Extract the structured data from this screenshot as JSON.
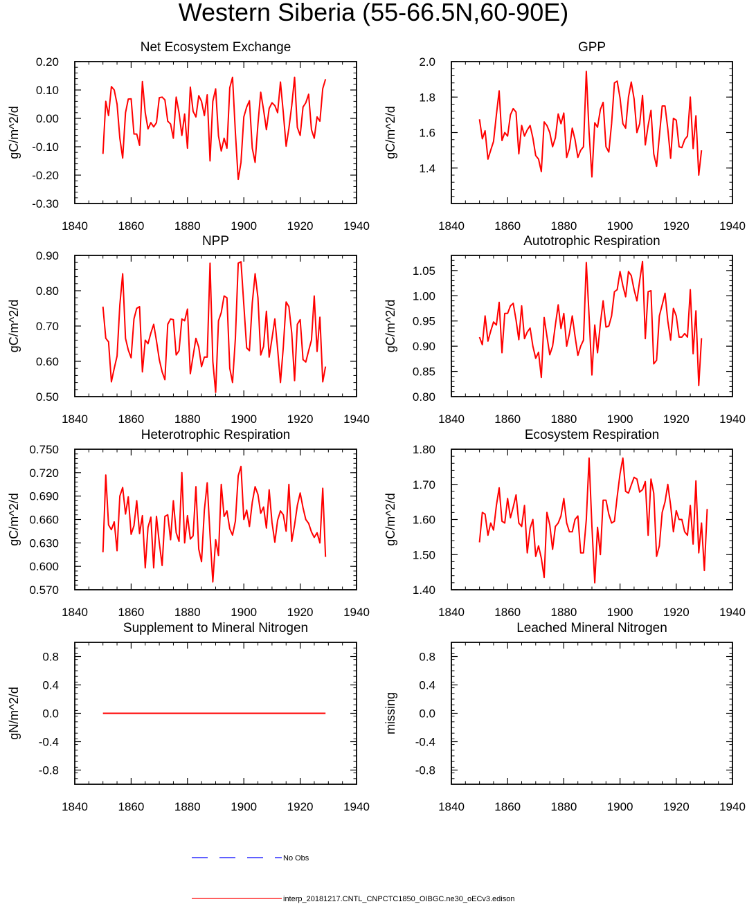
{
  "figure": {
    "title": "Western Siberia (55-66.5N,60-90E)",
    "legend": [
      {
        "label": "No Obs",
        "color": "#0000ff",
        "style": "dashed"
      },
      {
        "label": "interp_20181217.CNTL_CNPCTC1850_OIBGC.ne30_oECv3.edison",
        "color": "#ff0000",
        "style": "solid"
      }
    ]
  },
  "chart_data": [
    {
      "type": "line",
      "title": "Net Ecosystem Exchange",
      "ylabel": "gC/m^2/d",
      "xlim": [
        1840,
        1940
      ],
      "xticks": [
        "1840",
        "1860",
        "1880",
        "1900",
        "1920",
        "1940"
      ],
      "ylim": [
        -0.3,
        0.2
      ],
      "yticks": [
        "-0.30",
        "-0.20",
        "-0.10",
        "0.00",
        "0.10",
        "0.20"
      ],
      "series": [
        {
          "name": "model",
          "color": "#ff0000",
          "x_start": 1850,
          "values": [
            -0.125,
            0.06,
            0.01,
            0.112,
            0.1,
            0.05,
            -0.07,
            -0.14,
            0.02,
            0.068,
            0.069,
            -0.055,
            -0.055,
            -0.095,
            0.13,
            0.02,
            -0.037,
            -0.015,
            -0.03,
            -0.015,
            0.073,
            0.075,
            0.065,
            -0.01,
            -0.02,
            -0.07,
            0.075,
            0.02,
            -0.06,
            0.015,
            -0.105,
            0.11,
            0.025,
            0.005,
            0.08,
            0.06,
            0.01,
            0.083,
            -0.15,
            0.06,
            0.104,
            -0.062,
            -0.115,
            -0.07,
            -0.105,
            0.108,
            0.145,
            -0.05,
            -0.215,
            -0.155,
            0.005,
            0.04,
            0.062,
            -0.105,
            -0.155,
            -0.02,
            0.092,
            0.03,
            -0.04,
            0.035,
            0.055,
            0.045,
            0.02,
            0.128,
            0.02,
            -0.098,
            -0.035,
            0.045,
            0.145,
            -0.032,
            -0.06,
            0.04,
            0.055,
            0.085,
            -0.04,
            -0.07,
            0.005,
            -0.01,
            0.105,
            0.138
          ]
        }
      ]
    },
    {
      "type": "line",
      "title": "GPP",
      "ylabel": "gC/m^2/d",
      "xlim": [
        1840,
        1940
      ],
      "xticks": [
        "1840",
        "1860",
        "1880",
        "1900",
        "1920",
        "1940"
      ],
      "ylim": [
        1.2,
        2.0
      ],
      "yticks": [
        "1.4",
        "1.6",
        "1.8",
        "2.0"
      ],
      "series": [
        {
          "name": "model",
          "color": "#ff0000",
          "x_start": 1850,
          "values": [
            1.675,
            1.565,
            1.61,
            1.45,
            1.5,
            1.55,
            1.7,
            1.835,
            1.555,
            1.6,
            1.58,
            1.7,
            1.735,
            1.715,
            1.48,
            1.64,
            1.58,
            1.615,
            1.64,
            1.57,
            1.47,
            1.45,
            1.38,
            1.66,
            1.64,
            1.6,
            1.52,
            1.57,
            1.705,
            1.65,
            1.71,
            1.46,
            1.51,
            1.625,
            1.56,
            1.46,
            1.5,
            1.52,
            1.945,
            1.6,
            1.35,
            1.655,
            1.63,
            1.73,
            1.77,
            1.52,
            1.49,
            1.65,
            1.88,
            1.89,
            1.795,
            1.65,
            1.625,
            1.8,
            1.885,
            1.79,
            1.6,
            1.65,
            1.81,
            1.53,
            1.64,
            1.725,
            1.48,
            1.41,
            1.58,
            1.75,
            1.75,
            1.62,
            1.455,
            1.68,
            1.67,
            1.52,
            1.515,
            1.56,
            1.58,
            1.8,
            1.51,
            1.695,
            1.36,
            1.5
          ]
        }
      ]
    },
    {
      "type": "line",
      "title": "NPP",
      "ylabel": "gC/m^2/d",
      "xlim": [
        1840,
        1940
      ],
      "xticks": [
        "1840",
        "1860",
        "1880",
        "1900",
        "1920",
        "1940"
      ],
      "ylim": [
        0.5,
        0.9
      ],
      "yticks": [
        "0.50",
        "0.60",
        "0.70",
        "0.80",
        "0.90"
      ],
      "series": [
        {
          "name": "model",
          "color": "#ff0000",
          "x_start": 1850,
          "values": [
            0.755,
            0.665,
            0.655,
            0.542,
            0.58,
            0.615,
            0.76,
            0.848,
            0.665,
            0.632,
            0.61,
            0.72,
            0.75,
            0.755,
            0.57,
            0.66,
            0.65,
            0.68,
            0.705,
            0.658,
            0.605,
            0.57,
            0.548,
            0.705,
            0.72,
            0.718,
            0.618,
            0.63,
            0.72,
            0.715,
            0.748,
            0.565,
            0.615,
            0.665,
            0.64,
            0.585,
            0.612,
            0.612,
            0.878,
            0.6,
            0.512,
            0.715,
            0.738,
            0.785,
            0.78,
            0.58,
            0.54,
            0.665,
            0.878,
            0.882,
            0.76,
            0.638,
            0.63,
            0.765,
            0.848,
            0.78,
            0.618,
            0.642,
            0.742,
            0.612,
            0.665,
            0.72,
            0.635,
            0.54,
            0.64,
            0.768,
            0.755,
            0.68,
            0.545,
            0.705,
            0.718,
            0.605,
            0.598,
            0.63,
            0.66,
            0.785,
            0.628,
            0.725,
            0.542,
            0.585
          ]
        }
      ]
    },
    {
      "type": "line",
      "title": "Autotrophic Respiration",
      "ylabel": "gC/m^2/d",
      "xlim": [
        1840,
        1940
      ],
      "xticks": [
        "1840",
        "1860",
        "1880",
        "1900",
        "1920",
        "1940"
      ],
      "ylim": [
        0.8,
        1.08
      ],
      "yticks": [
        "0.80",
        "0.85",
        "0.90",
        "0.95",
        "1.00",
        "1.05"
      ],
      "series": [
        {
          "name": "model",
          "color": "#ff0000",
          "x_start": 1850,
          "values": [
            0.918,
            0.903,
            0.96,
            0.91,
            0.93,
            0.948,
            0.942,
            0.987,
            0.887,
            0.965,
            0.965,
            0.98,
            0.985,
            0.952,
            0.913,
            0.98,
            0.915,
            0.928,
            0.936,
            0.9,
            0.876,
            0.888,
            0.838,
            0.957,
            0.92,
            0.883,
            0.9,
            0.942,
            0.982,
            0.935,
            0.965,
            0.9,
            0.925,
            0.96,
            0.92,
            0.882,
            0.9,
            0.912,
            1.066,
            0.96,
            0.843,
            0.942,
            0.887,
            0.945,
            0.99,
            0.938,
            0.94,
            0.96,
            1.008,
            1.012,
            1.048,
            1.02,
            0.998,
            1.048,
            1.04,
            1.012,
            0.99,
            1.03,
            1.068,
            0.915,
            1.008,
            1.01,
            0.865,
            0.872,
            0.96,
            0.982,
            1.005,
            0.95,
            0.912,
            0.975,
            0.96,
            0.918,
            0.918,
            0.925,
            0.918,
            1.012,
            0.885,
            0.97,
            0.822,
            0.916
          ]
        }
      ]
    },
    {
      "type": "line",
      "title": "Heterotrophic Respiration",
      "ylabel": "gC/m^2/d",
      "xlim": [
        1840,
        1940
      ],
      "xticks": [
        "1840",
        "1860",
        "1880",
        "1900",
        "1920",
        "1940"
      ],
      "ylim": [
        0.57,
        0.75
      ],
      "yticks": [
        "0.570",
        "0.600",
        "0.630",
        "0.660",
        "0.690",
        "0.720",
        "0.750"
      ],
      "series": [
        {
          "name": "model",
          "color": "#ff0000",
          "x_start": 1850,
          "values": [
            0.618,
            0.717,
            0.653,
            0.647,
            0.657,
            0.62,
            0.69,
            0.701,
            0.667,
            0.689,
            0.641,
            0.652,
            0.684,
            0.642,
            0.665,
            0.598,
            0.65,
            0.663,
            0.598,
            0.664,
            0.63,
            0.601,
            0.664,
            0.666,
            0.634,
            0.684,
            0.643,
            0.632,
            0.72,
            0.63,
            0.665,
            0.635,
            0.639,
            0.702,
            0.622,
            0.606,
            0.672,
            0.707,
            0.64,
            0.58,
            0.634,
            0.614,
            0.705,
            0.664,
            0.671,
            0.648,
            0.64,
            0.658,
            0.716,
            0.728,
            0.66,
            0.672,
            0.651,
            0.682,
            0.702,
            0.692,
            0.668,
            0.676,
            0.649,
            0.698,
            0.656,
            0.631,
            0.659,
            0.671,
            0.666,
            0.645,
            0.705,
            0.632,
            0.653,
            0.678,
            0.694,
            0.675,
            0.66,
            0.655,
            0.644,
            0.637,
            0.643,
            0.63,
            0.7,
            0.612
          ]
        }
      ]
    },
    {
      "type": "line",
      "title": "Ecosystem Respiration",
      "ylabel": "gC/m^2/d",
      "xlim": [
        1840,
        1940
      ],
      "xticks": [
        "1840",
        "1860",
        "1880",
        "1900",
        "1920",
        "1940"
      ],
      "ylim": [
        1.4,
        1.8
      ],
      "yticks": [
        "1.40",
        "1.50",
        "1.60",
        "1.70",
        "1.80"
      ],
      "series": [
        {
          "name": "model",
          "color": "#ff0000",
          "x_start": 1850,
          "values": [
            1.535,
            1.62,
            1.615,
            1.555,
            1.59,
            1.57,
            1.64,
            1.69,
            1.595,
            1.59,
            1.66,
            1.605,
            1.635,
            1.67,
            1.59,
            1.58,
            1.64,
            1.505,
            1.575,
            1.6,
            1.495,
            1.525,
            1.49,
            1.435,
            1.62,
            1.585,
            1.515,
            1.58,
            1.59,
            1.61,
            1.66,
            1.59,
            1.565,
            1.565,
            1.6,
            1.61,
            1.505,
            1.505,
            1.6,
            1.775,
            1.58,
            1.42,
            1.578,
            1.5,
            1.655,
            1.655,
            1.615,
            1.59,
            1.595,
            1.665,
            1.73,
            1.775,
            1.68,
            1.675,
            1.698,
            1.72,
            1.715,
            1.678,
            1.685,
            1.708,
            1.555,
            1.715,
            1.675,
            1.495,
            1.525,
            1.62,
            1.65,
            1.7,
            1.64,
            1.565,
            1.625,
            1.6,
            1.6,
            1.565,
            1.555,
            1.64,
            1.53,
            1.71,
            1.505,
            1.59,
            1.455,
            1.63
          ]
        }
      ]
    },
    {
      "type": "line",
      "title": "Supplement to Mineral Nitrogen",
      "ylabel": "gN/m^2/d",
      "xlim": [
        1840,
        1940
      ],
      "xticks": [
        "1840",
        "1860",
        "1880",
        "1900",
        "1920",
        "1940"
      ],
      "ylim": [
        -1.0,
        1.0
      ],
      "yticks": [
        "-0.8",
        "-0.4",
        "0.0",
        "0.4",
        "0.8"
      ],
      "series": [
        {
          "name": "model",
          "color": "#ff0000",
          "x_start": 1850,
          "values": [
            0,
            0
          ]
        }
      ],
      "x_end": 1929
    },
    {
      "type": "line",
      "title": "Leached Mineral Nitrogen",
      "ylabel": "missing",
      "xlim": [
        1840,
        1940
      ],
      "xticks": [
        "1840",
        "1860",
        "1880",
        "1900",
        "1920",
        "1940"
      ],
      "ylim": [
        -1.0,
        1.0
      ],
      "yticks": [
        "-0.8",
        "-0.4",
        "0.0",
        "0.4",
        "0.8"
      ],
      "series": []
    }
  ]
}
